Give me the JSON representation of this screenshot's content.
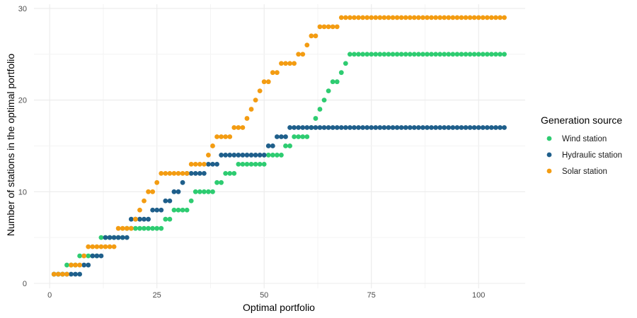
{
  "chart_data": {
    "type": "scatter",
    "title": "",
    "xlabel": "Optimal portfolio",
    "ylabel": "Number of stations in the optimal portfolio",
    "xlim": [
      0,
      106
    ],
    "ylim": [
      0,
      29
    ],
    "x_ticks": [
      0,
      25,
      50,
      75,
      100
    ],
    "y_ticks": [
      0,
      10,
      20,
      30
    ],
    "grid": true,
    "legend": {
      "title": "Generation source",
      "position": "right"
    },
    "series": [
      {
        "name": "Wind station",
        "color": "#2ecc71",
        "steps": [
          [
            1,
            1
          ],
          [
            4,
            2
          ],
          [
            7,
            3
          ],
          [
            12,
            5
          ],
          [
            14,
            5
          ],
          [
            15,
            5
          ],
          [
            18,
            6
          ],
          [
            27,
            7
          ],
          [
            29,
            8
          ],
          [
            33,
            9
          ],
          [
            34,
            10
          ],
          [
            39,
            11
          ],
          [
            41,
            12
          ],
          [
            44,
            13
          ],
          [
            51,
            14
          ],
          [
            55,
            15
          ],
          [
            57,
            16
          ],
          [
            61,
            17
          ],
          [
            62,
            18
          ],
          [
            63,
            19
          ],
          [
            64,
            20
          ],
          [
            65,
            21
          ],
          [
            66,
            22
          ],
          [
            68,
            23
          ],
          [
            69,
            24
          ],
          [
            70,
            25
          ],
          [
            106,
            25
          ]
        ]
      },
      {
        "name": "Hydraulic station",
        "color": "#1f5f8b",
        "steps": [
          [
            1,
            1
          ],
          [
            2,
            1
          ],
          [
            5,
            1
          ],
          [
            8,
            2
          ],
          [
            10,
            3
          ],
          [
            13,
            5
          ],
          [
            16,
            5
          ],
          [
            19,
            7
          ],
          [
            22,
            7
          ],
          [
            24,
            8
          ],
          [
            27,
            9
          ],
          [
            29,
            10
          ],
          [
            31,
            11
          ],
          [
            32,
            12
          ],
          [
            35,
            12
          ],
          [
            37,
            13
          ],
          [
            40,
            14
          ],
          [
            51,
            15
          ],
          [
            53,
            16
          ],
          [
            56,
            17
          ],
          [
            106,
            17
          ]
        ]
      },
      {
        "name": "Solar station",
        "color": "#f39c12",
        "steps": [
          [
            1,
            1
          ],
          [
            3,
            1
          ],
          [
            5,
            2
          ],
          [
            8,
            3
          ],
          [
            9,
            4
          ],
          [
            12,
            4
          ],
          [
            16,
            6
          ],
          [
            20,
            7
          ],
          [
            21,
            8
          ],
          [
            22,
            9
          ],
          [
            23,
            10
          ],
          [
            25,
            11
          ],
          [
            26,
            12
          ],
          [
            33,
            13
          ],
          [
            37,
            14
          ],
          [
            38,
            15
          ],
          [
            39,
            16
          ],
          [
            43,
            17
          ],
          [
            46,
            18
          ],
          [
            47,
            19
          ],
          [
            48,
            20
          ],
          [
            49,
            21
          ],
          [
            50,
            22
          ],
          [
            52,
            23
          ],
          [
            54,
            24
          ],
          [
            58,
            25
          ],
          [
            60,
            26
          ],
          [
            61,
            27
          ],
          [
            63,
            28
          ],
          [
            68,
            29
          ],
          [
            106,
            29
          ]
        ]
      }
    ]
  }
}
